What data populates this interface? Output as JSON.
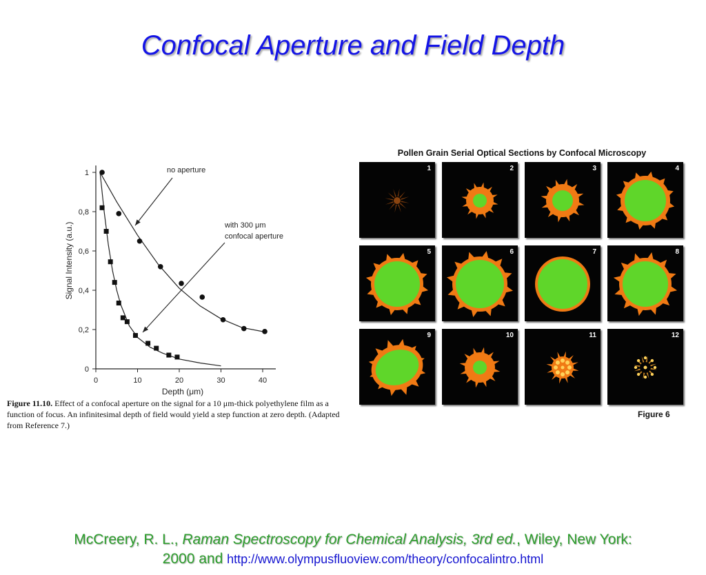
{
  "title": "Confocal Aperture and Field Depth",
  "chart_data": {
    "type": "scatter",
    "xlabel": "Depth (μm)",
    "ylabel": "Signal Intensity (a.u.)",
    "xlim": [
      0,
      42
    ],
    "ylim": [
      0,
      1.05
    ],
    "x_ticks": [
      "0",
      "10",
      "20",
      "30",
      "40"
    ],
    "y_ticks": [
      "0",
      "0,2",
      "0,4",
      "0,6",
      "0,8",
      "1"
    ],
    "x_tick_values": [
      0,
      10,
      20,
      30,
      40
    ],
    "y_tick_values": [
      0,
      0.2,
      0.4,
      0.6,
      0.8,
      1
    ],
    "grid": false,
    "series": [
      {
        "name": "no aperture",
        "marker": "circle",
        "points": [
          [
            1.5,
            1.0
          ],
          [
            5.5,
            0.79
          ],
          [
            10.5,
            0.65
          ],
          [
            15.5,
            0.52
          ],
          [
            20.5,
            0.435
          ],
          [
            25.5,
            0.365
          ],
          [
            30.5,
            0.25
          ],
          [
            35.5,
            0.205
          ],
          [
            40.5,
            0.19
          ]
        ],
        "curve": [
          [
            1,
            1.0
          ],
          [
            5,
            0.85
          ],
          [
            10,
            0.68
          ],
          [
            15,
            0.53
          ],
          [
            20,
            0.41
          ],
          [
            25,
            0.32
          ],
          [
            30,
            0.255
          ],
          [
            35,
            0.21
          ],
          [
            40,
            0.19
          ]
        ]
      },
      {
        "name": "with 300 μm confocal aperture",
        "marker": "square",
        "points": [
          [
            1.5,
            0.82
          ],
          [
            2.5,
            0.7
          ],
          [
            3.5,
            0.545
          ],
          [
            4.5,
            0.44
          ],
          [
            5.5,
            0.335
          ],
          [
            6.5,
            0.26
          ],
          [
            7.5,
            0.24
          ],
          [
            9.5,
            0.17
          ],
          [
            12.5,
            0.13
          ],
          [
            14.5,
            0.105
          ],
          [
            17.5,
            0.07
          ],
          [
            19.5,
            0.06
          ]
        ],
        "curve": [
          [
            1,
            1.0
          ],
          [
            2,
            0.8
          ],
          [
            3,
            0.63
          ],
          [
            4,
            0.5
          ],
          [
            5,
            0.4
          ],
          [
            6,
            0.325
          ],
          [
            8,
            0.22
          ],
          [
            10,
            0.16
          ],
          [
            13,
            0.11
          ],
          [
            16,
            0.08
          ],
          [
            20,
            0.05
          ],
          [
            25,
            0.03
          ],
          [
            30,
            0.015
          ]
        ]
      }
    ],
    "annotations": {
      "no_aperture": "no aperture",
      "aperture_line1": "with 300 μm",
      "aperture_line2": "confocal aperture"
    }
  },
  "caption": {
    "label": "Figure 11.10.",
    "text": " Effect of a confocal aperture on the signal for a 10 μm-thick polyethylene film as a function of focus. An infinitesimal depth of field would yield a step function at zero depth. (Adapted from Reference 7.)"
  },
  "pollen": {
    "title": "Pollen Grain Serial Optical Sections by Confocal Microscopy",
    "figure_label": "Figure 6",
    "frames": [
      {
        "n": "1"
      },
      {
        "n": "2"
      },
      {
        "n": "3"
      },
      {
        "n": "4"
      },
      {
        "n": "5"
      },
      {
        "n": "6"
      },
      {
        "n": "7"
      },
      {
        "n": "8"
      },
      {
        "n": "9"
      },
      {
        "n": "10"
      },
      {
        "n": "11"
      },
      {
        "n": "12"
      }
    ]
  },
  "reference": {
    "authors": "McCreery, R. L., ",
    "book": "Raman Spectroscopy for Chemical Analysis, 3rd ed.",
    "publisher": ", Wiley, New York:",
    "year": "2000 and ",
    "url": "http://www.olympusfluoview.com/theory/confocalintro.html"
  },
  "colors": {
    "title": "#1414e6",
    "reference": "#2d9e2d",
    "url": "#1414d0",
    "pollen_green": "#5fd62a",
    "pollen_orange": "#f07a14"
  }
}
